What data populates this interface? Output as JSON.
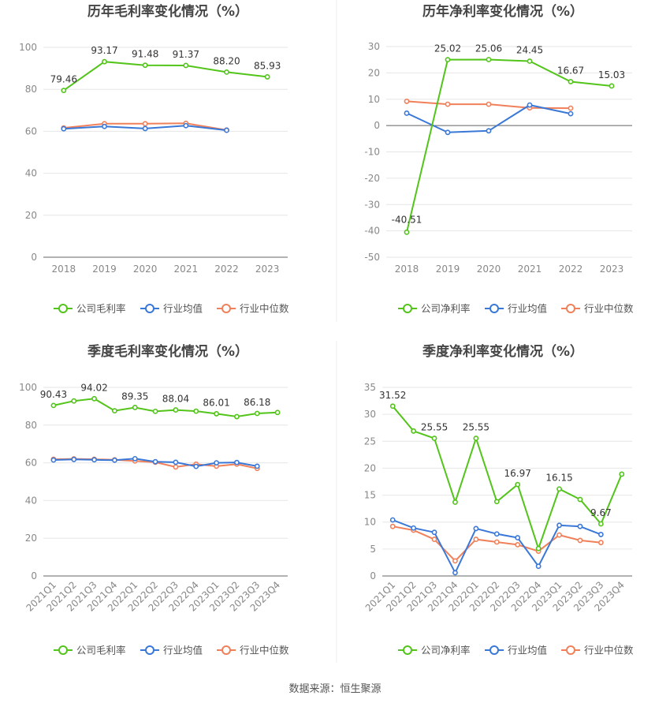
{
  "footer": {
    "source": "数据来源：恒生聚源"
  },
  "colors": {
    "company": "#52c41a",
    "industry_avg": "#3a78d8",
    "industry_median": "#f0805a",
    "grid": "#e6e6e6",
    "axis_text": "#888888",
    "title": "#444444"
  },
  "chart_data": [
    {
      "type": "line",
      "title": "历年毛利率变化情况（%）",
      "categories": [
        "2018",
        "2019",
        "2020",
        "2021",
        "2022",
        "2023"
      ],
      "ylim": [
        0,
        100
      ],
      "yticks": [
        0,
        20,
        40,
        60,
        80,
        100
      ],
      "grid": true,
      "legend_position": "bottom",
      "series": [
        {
          "name": "公司毛利率",
          "color": "#52c41a",
          "values": [
            79.46,
            93.17,
            91.48,
            91.37,
            88.2,
            85.93
          ],
          "labels": [
            "79.46",
            "93.17",
            "91.48",
            "91.37",
            "88.20",
            "85.93"
          ]
        },
        {
          "name": "行业均值",
          "color": "#3a78d8",
          "values": [
            61.2,
            62.3,
            61.3,
            62.7,
            60.5,
            null
          ]
        },
        {
          "name": "行业中位数",
          "color": "#f0805a",
          "values": [
            61.6,
            63.6,
            63.6,
            63.8,
            60.6,
            null
          ]
        }
      ]
    },
    {
      "type": "line",
      "title": "历年净利率变化情况（%）",
      "categories": [
        "2018",
        "2019",
        "2020",
        "2021",
        "2022",
        "2023"
      ],
      "ylim": [
        -50,
        30
      ],
      "yticks": [
        -50,
        -40,
        -30,
        -20,
        -10,
        0,
        10,
        20,
        30
      ],
      "grid": true,
      "legend_position": "bottom",
      "series": [
        {
          "name": "公司净利率",
          "color": "#52c41a",
          "values": [
            -40.51,
            25.02,
            25.06,
            24.45,
            16.67,
            15.03
          ],
          "labels": [
            "-40.51",
            "25.02",
            "25.06",
            "24.45",
            "16.67",
            "15.03"
          ]
        },
        {
          "name": "行业均值",
          "color": "#3a78d8",
          "values": [
            4.7,
            -2.6,
            -2.0,
            7.8,
            4.5,
            null
          ]
        },
        {
          "name": "行业中位数",
          "color": "#f0805a",
          "values": [
            9.2,
            8.1,
            8.1,
            6.7,
            6.6,
            null
          ]
        }
      ]
    },
    {
      "type": "line",
      "title": "季度毛利率变化情况（%）",
      "categories": [
        "2021Q1",
        "2021Q2",
        "2021Q3",
        "2021Q4",
        "2022Q1",
        "2022Q2",
        "2022Q3",
        "2022Q4",
        "2023Q1",
        "2023Q2",
        "2023Q3",
        "2023Q4"
      ],
      "ylim": [
        0,
        100
      ],
      "yticks": [
        0,
        20,
        40,
        60,
        80,
        100
      ],
      "grid": true,
      "legend_position": "bottom",
      "series": [
        {
          "name": "公司毛利率",
          "color": "#52c41a",
          "values": [
            90.43,
            92.8,
            94.02,
            87.6,
            89.35,
            87.3,
            88.04,
            87.4,
            86.01,
            84.5,
            86.18,
            86.7
          ],
          "labels": [
            "90.43",
            "",
            "94.02",
            "",
            "89.35",
            "",
            "88.04",
            "",
            "86.01",
            "",
            "86.18",
            ""
          ]
        },
        {
          "name": "行业均值",
          "color": "#3a78d8",
          "values": [
            61.5,
            61.8,
            61.6,
            61.4,
            62.2,
            60.6,
            60.3,
            58.1,
            60.0,
            60.2,
            58.2,
            null
          ]
        },
        {
          "name": "行业中位数",
          "color": "#f0805a",
          "values": [
            61.9,
            62.1,
            61.9,
            61.6,
            61.0,
            60.3,
            57.8,
            59.3,
            58.2,
            59.3,
            57.0,
            null
          ]
        }
      ]
    },
    {
      "type": "line",
      "title": "季度净利率变化情况（%）",
      "categories": [
        "2021Q1",
        "2021Q2",
        "2021Q3",
        "2021Q4",
        "2022Q1",
        "2022Q2",
        "2022Q3",
        "2022Q4",
        "2023Q1",
        "2023Q2",
        "2023Q3",
        "2023Q4"
      ],
      "ylim": [
        0,
        35
      ],
      "yticks": [
        0,
        5,
        10,
        15,
        20,
        25,
        30,
        35
      ],
      "grid": true,
      "legend_position": "bottom",
      "series": [
        {
          "name": "公司净利率",
          "color": "#52c41a",
          "values": [
            31.52,
            26.9,
            25.55,
            13.7,
            25.55,
            13.8,
            16.97,
            5.1,
            16.15,
            14.2,
            9.67,
            18.9
          ],
          "labels": [
            "31.52",
            "",
            "25.55",
            "",
            "25.55",
            "",
            "16.97",
            "",
            "16.15",
            "",
            "9.67",
            ""
          ]
        },
        {
          "name": "行业均值",
          "color": "#3a78d8",
          "values": [
            10.4,
            8.9,
            8.1,
            0.6,
            8.8,
            7.8,
            7.1,
            1.8,
            9.4,
            9.2,
            7.7,
            null
          ]
        },
        {
          "name": "行业中位数",
          "color": "#f0805a",
          "values": [
            9.2,
            8.5,
            6.8,
            2.8,
            6.8,
            6.3,
            5.8,
            4.6,
            7.6,
            6.6,
            6.2,
            null
          ]
        }
      ]
    }
  ]
}
